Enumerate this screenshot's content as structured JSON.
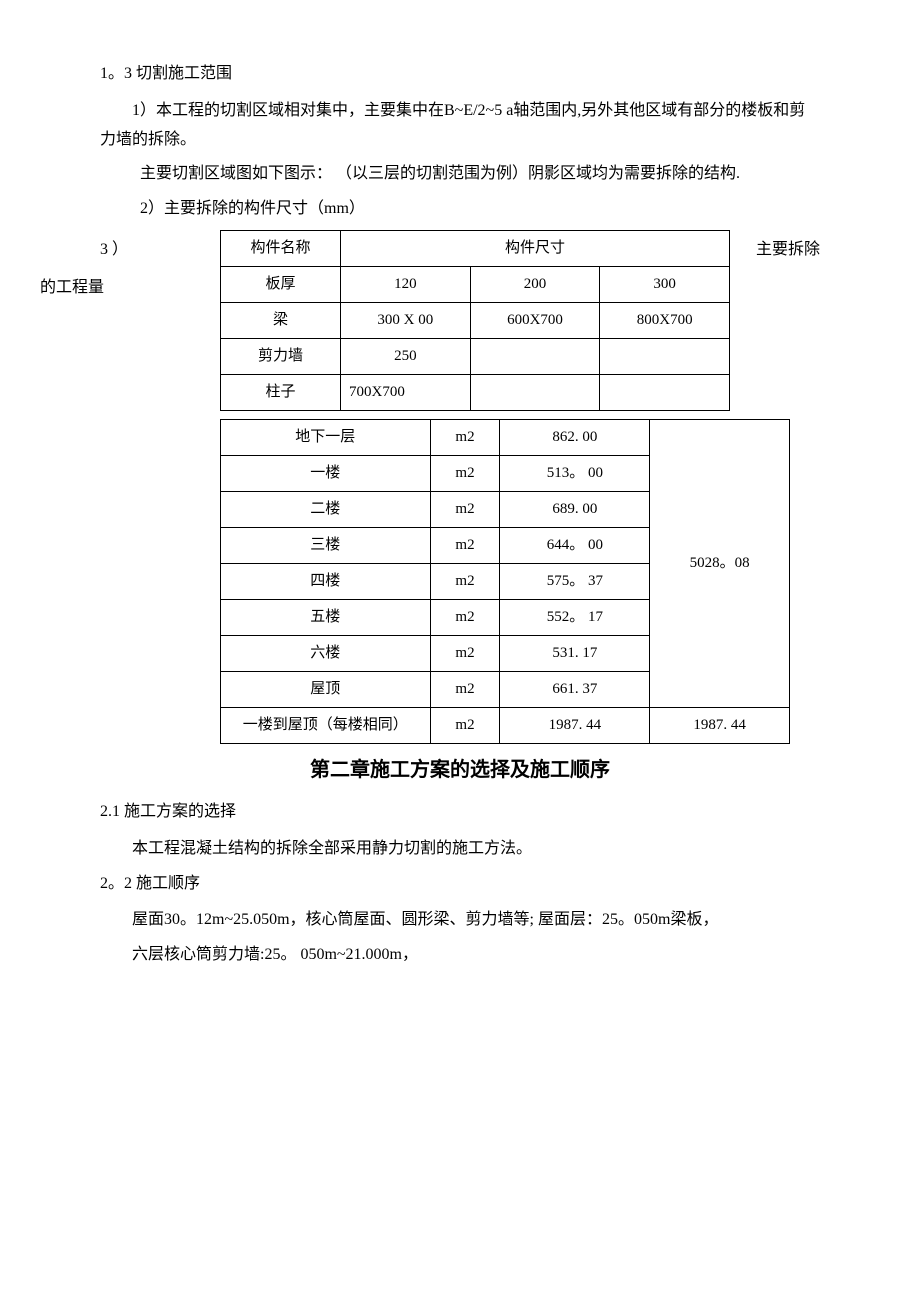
{
  "section1_3": {
    "heading": "1。3 切割施工范围",
    "p1": "1）本工程的切割区域相对集中，主要集中在B~E/2~5 a轴范围内,另外其他区域有部分的楼板和剪力墙的拆除。",
    "p2": "主要切割区域图如下图示：  （以三层的切割范围为例）阴影区域均为需要拆除的结构.",
    "p3": "2）主要拆除的构件尺寸（mm）",
    "inline3": "3 ）",
    "inline3b": "主要拆除",
    "inline3c": "的工程量"
  },
  "table1": {
    "header_name": "构件名称",
    "header_size": "构件尺寸",
    "rows": [
      {
        "name": "板厚",
        "c1": "120",
        "c2": "200",
        "c3": "300"
      },
      {
        "name": "梁",
        "c1": "300 X  00",
        "c2": "600X700",
        "c3": "800X700"
      },
      {
        "name": "剪力墙",
        "c1": "250",
        "c2": "",
        "c3": ""
      },
      {
        "name": "柱子",
        "c1": "700X700",
        "c2": "",
        "c3": ""
      }
    ]
  },
  "table2": {
    "rows": [
      {
        "loc": "地下一层",
        "unit": "m2",
        "val": "862. 00"
      },
      {
        "loc": "一楼",
        "unit": "m2",
        "val": "513。 00"
      },
      {
        "loc": "二楼",
        "unit": "m2",
        "val": "689. 00"
      },
      {
        "loc": "三楼",
        "unit": "m2",
        "val": "644。 00"
      },
      {
        "loc": "四楼",
        "unit": "m2",
        "val": "575。 37"
      },
      {
        "loc": "五楼",
        "unit": "m2",
        "val": "552。 17"
      },
      {
        "loc": "六楼",
        "unit": "m2",
        "val": "531. 17"
      },
      {
        "loc": "屋顶",
        "unit": "m2",
        "val": "661. 37"
      }
    ],
    "total1": "5028。08",
    "lastrow": {
      "loc": "一楼到屋顶（每楼相同）",
      "unit": "m2",
      "val": "1987. 44",
      "total": "1987. 44"
    }
  },
  "chapter2": {
    "heading": "第二章施工方案的选择及施工顺序"
  },
  "section2_1": {
    "heading": "2.1 施工方案的选择",
    "p1": "本工程混凝土结构的拆除全部采用静力切割的施工方法。"
  },
  "section2_2": {
    "heading": "2。2 施工顺序",
    "p1": "屋面30。12m~25.050m，核心筒屋面、圆形梁、剪力墙等; 屋面层：25。050m梁板，",
    "p2": "六层核心筒剪力墙:25。 050m~21.000m，"
  }
}
